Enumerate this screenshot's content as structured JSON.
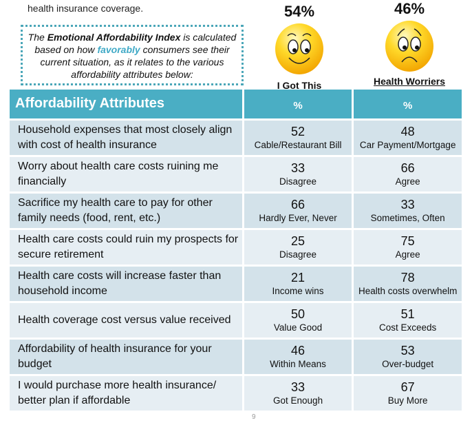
{
  "cut_text": "health insurance coverage.",
  "infobox": {
    "pre": "The ",
    "bold": "Emotional Affordability Index",
    "mid": " is calculated based on how ",
    "fav": "favorably",
    "post": " consumers see their current situation, as it relates to the various affordability attributes below:"
  },
  "groups": [
    {
      "percent": "54%",
      "label": "I Got This",
      "icon": "happy-face"
    },
    {
      "percent": "46%",
      "label": "Health Worriers",
      "icon": "worried-face"
    }
  ],
  "table": {
    "headers": [
      "Affordability Attributes",
      "%",
      "%"
    ],
    "rows": [
      {
        "attr": "Household expenses that most closely align with cost of health insurance",
        "v1": "52",
        "s1": "Cable/Restaurant Bill",
        "v2": "48",
        "s2": "Car Payment/Mortgage"
      },
      {
        "attr": "Worry about health care costs ruining me financially",
        "v1": "33",
        "s1": "Disagree",
        "v2": "66",
        "s2": "Agree"
      },
      {
        "attr": "Sacrifice my health care to pay for other family needs (food, rent, etc.)",
        "v1": "66",
        "s1": "Hardly Ever, Never",
        "v2": "33",
        "s2": "Sometimes, Often"
      },
      {
        "attr": "Health care costs could ruin my prospects for secure retirement",
        "v1": "25",
        "s1": "Disagree",
        "v2": "75",
        "s2": "Agree"
      },
      {
        "attr": "Health care costs will increase faster than household income",
        "v1": "21",
        "s1": "Income wins",
        "v2": "78",
        "s2": "Health costs overwhelm"
      },
      {
        "attr": "Health coverage cost versus value received",
        "v1": "50",
        "s1": "Value Good",
        "v2": "51",
        "s2": "Cost Exceeds"
      },
      {
        "attr": "Affordability of health insurance for your budget",
        "v1": "46",
        "s1": "Within Means",
        "v2": "53",
        "s2": "Over-budget"
      },
      {
        "attr": "I would purchase more health insurance/ better plan if affordable",
        "v1": "33",
        "s1": "Got Enough",
        "v2": "67",
        "s2": "Buy More"
      }
    ]
  },
  "colors": {
    "header": "#4aaec4",
    "row_dark": "#d3e2ea",
    "row_light": "#e6eef3",
    "accent": "#3fa9c6"
  },
  "page_number": "9"
}
